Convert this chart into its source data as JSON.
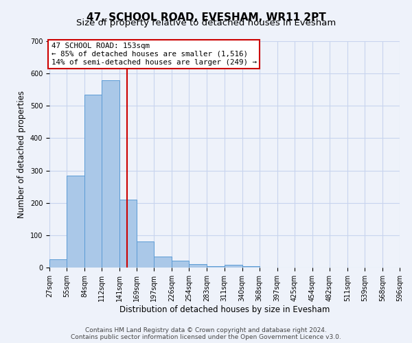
{
  "title": "47, SCHOOL ROAD, EVESHAM, WR11 2PT",
  "subtitle": "Size of property relative to detached houses in Evesham",
  "xlabel": "Distribution of detached houses by size in Evesham",
  "ylabel": "Number of detached properties",
  "bar_edges": [
    27,
    55,
    84,
    112,
    141,
    169,
    197,
    226,
    254,
    283,
    311,
    340,
    368,
    397,
    425,
    454,
    482,
    511,
    539,
    568,
    596
  ],
  "bar_heights": [
    25,
    285,
    535,
    580,
    210,
    80,
    35,
    22,
    10,
    5,
    8,
    5,
    0,
    0,
    0,
    0,
    0,
    0,
    0,
    0
  ],
  "bar_color": "#aac8e8",
  "bar_edge_color": "#5b9bd5",
  "vline_x": 153,
  "vline_color": "#cc0000",
  "annotation_box_color": "#cc0000",
  "annotation_lines": [
    "47 SCHOOL ROAD: 153sqm",
    "← 85% of detached houses are smaller (1,516)",
    "14% of semi-detached houses are larger (249) →"
  ],
  "ylim": [
    0,
    700
  ],
  "yticks": [
    0,
    100,
    200,
    300,
    400,
    500,
    600,
    700
  ],
  "tick_labels": [
    "27sqm",
    "55sqm",
    "84sqm",
    "112sqm",
    "141sqm",
    "169sqm",
    "197sqm",
    "226sqm",
    "254sqm",
    "283sqm",
    "311sqm",
    "340sqm",
    "368sqm",
    "397sqm",
    "425sqm",
    "454sqm",
    "482sqm",
    "511sqm",
    "539sqm",
    "568sqm",
    "596sqm"
  ],
  "footnote1": "Contains HM Land Registry data © Crown copyright and database right 2024.",
  "footnote2": "Contains public sector information licensed under the Open Government Licence v3.0.",
  "background_color": "#eef2fa",
  "grid_color": "#c8d4ee",
  "title_fontsize": 11,
  "subtitle_fontsize": 9.5,
  "axis_label_fontsize": 8.5,
  "tick_fontsize": 7,
  "footnote_fontsize": 6.5
}
